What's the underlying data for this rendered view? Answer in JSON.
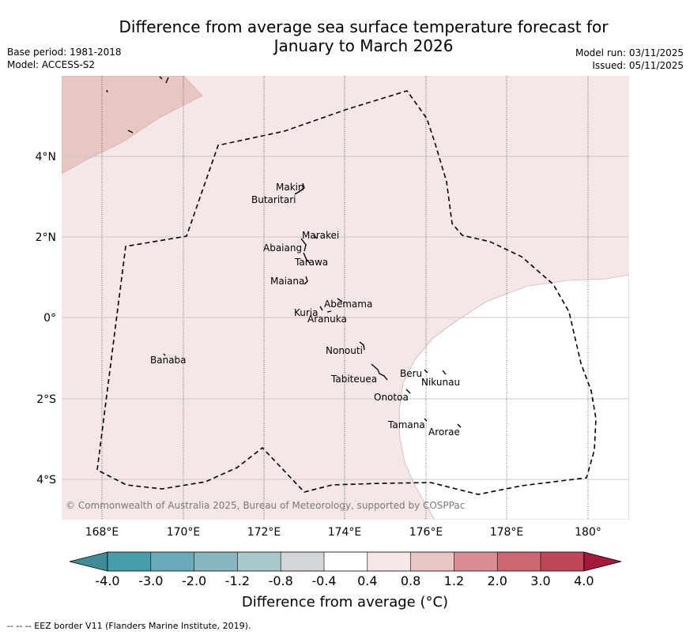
{
  "title_line1": "Difference from average sea surface temperature forecast for",
  "title_line2": "January to March 2026",
  "base_period": "Base period: 1981-2018",
  "model": "Model: ACCESS-S2",
  "model_run": "Model run: 03/11/2025",
  "issued": "Issued: 05/11/2025",
  "lat_labels": [
    "4°N",
    "2°N",
    "0°",
    "2°S",
    "4°S"
  ],
  "lon_labels": [
    "168°E",
    "170°E",
    "172°E",
    "174°E",
    "176°E",
    "178°E",
    "180°"
  ],
  "islands": [
    "Makin",
    "Butaritari",
    "Marakei",
    "Abaiang",
    "Tarawa",
    "Maiana",
    "Abemama",
    "Kuria",
    "Aranuka",
    "Nonouti",
    "Banaba",
    "Tabiteuea",
    "Beru",
    "Nikunau",
    "Onotoa",
    "Tamana",
    "Arorae"
  ],
  "copyright": "© Commonwealth of Australia 2025, Bureau of Meteorology, supported by COSPPac",
  "colorbar": {
    "ticks": [
      "-4.0",
      "-3.0",
      "-2.0",
      "-1.2",
      "-0.8",
      "-0.4",
      "0.4",
      "0.8",
      "1.2",
      "2.0",
      "3.0",
      "4.0"
    ],
    "colors": [
      "#3f8c97",
      "#469ead",
      "#68aab7",
      "#88b5bf",
      "#a9c8cc",
      "#d2d6d8",
      "#ffffff",
      "#f5e7e6",
      "#e8c6c3",
      "#d98e94",
      "#cc6772",
      "#bf4657",
      "#a51a3a"
    ],
    "title": "Difference from average (°C)"
  },
  "footnote": "--  --  -- EEZ border V11 (Flanders Marine Institute, 2019)."
}
